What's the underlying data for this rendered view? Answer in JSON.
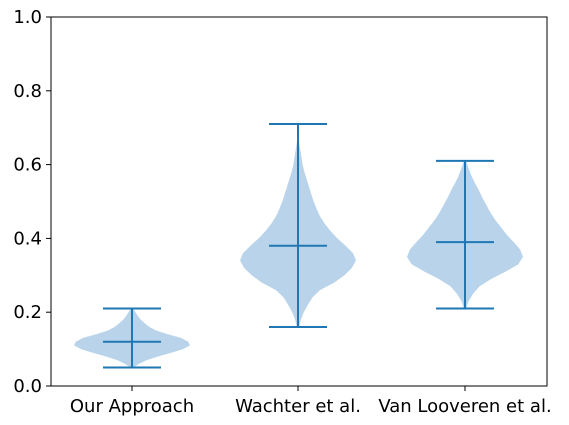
{
  "chart_data": {
    "type": "violin",
    "categories": [
      "Our Approach",
      "Wachter et al.",
      "Van Looveren et al."
    ],
    "ylim": [
      0,
      1.0
    ],
    "yticks": [
      "0.0",
      "0.2",
      "0.4",
      "0.6",
      "0.8",
      "1.0"
    ],
    "grid": false,
    "legend": "none",
    "colors": {
      "body": "#b9d4ea",
      "lines": "#1f77b4"
    },
    "series": [
      {
        "min": 0.05,
        "median": 0.12,
        "max": 0.21,
        "density": [
          [
            0.05,
            0.02
          ],
          [
            0.06,
            0.12
          ],
          [
            0.07,
            0.25
          ],
          [
            0.08,
            0.45
          ],
          [
            0.09,
            0.68
          ],
          [
            0.1,
            0.88
          ],
          [
            0.11,
            1.0
          ],
          [
            0.12,
            0.97
          ],
          [
            0.13,
            0.85
          ],
          [
            0.14,
            0.62
          ],
          [
            0.15,
            0.42
          ],
          [
            0.16,
            0.3
          ],
          [
            0.17,
            0.22
          ],
          [
            0.18,
            0.15
          ],
          [
            0.19,
            0.1
          ],
          [
            0.2,
            0.06
          ],
          [
            0.21,
            0.02
          ]
        ]
      },
      {
        "min": 0.16,
        "median": 0.38,
        "max": 0.71,
        "density": [
          [
            0.16,
            0.02
          ],
          [
            0.18,
            0.05
          ],
          [
            0.2,
            0.1
          ],
          [
            0.22,
            0.17
          ],
          [
            0.24,
            0.25
          ],
          [
            0.26,
            0.38
          ],
          [
            0.28,
            0.62
          ],
          [
            0.3,
            0.8
          ],
          [
            0.32,
            0.93
          ],
          [
            0.34,
            1.0
          ],
          [
            0.36,
            0.95
          ],
          [
            0.38,
            0.82
          ],
          [
            0.4,
            0.68
          ],
          [
            0.42,
            0.56
          ],
          [
            0.44,
            0.46
          ],
          [
            0.46,
            0.38
          ],
          [
            0.48,
            0.32
          ],
          [
            0.5,
            0.27
          ],
          [
            0.52,
            0.23
          ],
          [
            0.54,
            0.19
          ],
          [
            0.56,
            0.15
          ],
          [
            0.58,
            0.11
          ],
          [
            0.6,
            0.08
          ],
          [
            0.62,
            0.06
          ],
          [
            0.64,
            0.04
          ],
          [
            0.66,
            0.02
          ],
          [
            0.68,
            0.01
          ],
          [
            0.71,
            0.0
          ]
        ]
      },
      {
        "min": 0.21,
        "median": 0.39,
        "max": 0.61,
        "density": [
          [
            0.21,
            0.02
          ],
          [
            0.23,
            0.06
          ],
          [
            0.25,
            0.14
          ],
          [
            0.27,
            0.25
          ],
          [
            0.29,
            0.45
          ],
          [
            0.31,
            0.7
          ],
          [
            0.33,
            0.92
          ],
          [
            0.35,
            1.0
          ],
          [
            0.37,
            0.95
          ],
          [
            0.39,
            0.84
          ],
          [
            0.41,
            0.72
          ],
          [
            0.43,
            0.62
          ],
          [
            0.45,
            0.52
          ],
          [
            0.47,
            0.44
          ],
          [
            0.49,
            0.37
          ],
          [
            0.51,
            0.3
          ],
          [
            0.53,
            0.24
          ],
          [
            0.55,
            0.17
          ],
          [
            0.57,
            0.11
          ],
          [
            0.59,
            0.06
          ],
          [
            0.61,
            0.02
          ]
        ]
      }
    ]
  }
}
